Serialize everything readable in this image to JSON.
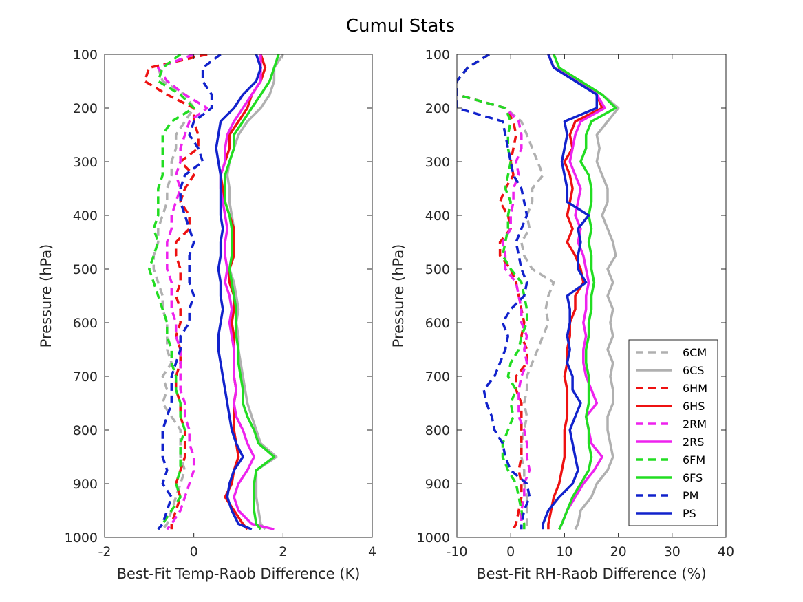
{
  "figure_title": "Cumul Stats",
  "chart_data": [
    {
      "type": "line",
      "xlabel": "Best-Fit Temp-Raob Difference (K)",
      "ylabel": "Pressure (hPa)",
      "xlim": [
        -2,
        4
      ],
      "ylim": [
        100,
        1000
      ],
      "y_reversed": true,
      "x_ticks": [
        "-2",
        "0",
        "2",
        "4"
      ],
      "y_ticks": [
        "100",
        "200",
        "300",
        "400",
        "500",
        "600",
        "700",
        "800",
        "900",
        "1000"
      ],
      "grid": false,
      "y": [
        100,
        125,
        150,
        175,
        200,
        225,
        250,
        275,
        300,
        325,
        350,
        375,
        400,
        425,
        450,
        475,
        500,
        525,
        550,
        575,
        600,
        625,
        650,
        675,
        700,
        725,
        750,
        775,
        800,
        825,
        850,
        875,
        900,
        925,
        950,
        975,
        985
      ],
      "series": [
        {
          "name": "6CM",
          "color": "#b0b0b0",
          "dash": true,
          "values": [
            0.0,
            -0.8,
            -0.7,
            -0.2,
            0.0,
            -0.2,
            -0.4,
            -0.4,
            -0.5,
            -0.5,
            -0.6,
            -0.6,
            -0.7,
            -0.8,
            -0.8,
            -0.9,
            -0.9,
            -0.8,
            -0.7,
            -0.7,
            -0.6,
            -0.6,
            -0.6,
            -0.5,
            -0.7,
            -0.6,
            -0.7,
            -0.5,
            -0.3,
            -0.3,
            -0.3,
            -0.2,
            -0.3,
            -0.4,
            -0.5,
            -0.6,
            -0.7
          ]
        },
        {
          "name": "6CS",
          "color": "#b0b0b0",
          "dash": false,
          "values": [
            2.0,
            1.8,
            1.8,
            1.7,
            1.5,
            1.2,
            1.0,
            0.9,
            0.8,
            0.75,
            0.8,
            0.8,
            0.85,
            0.9,
            0.9,
            0.85,
            0.8,
            0.9,
            0.95,
            1.0,
            0.95,
            1.0,
            1.0,
            1.05,
            1.1,
            1.15,
            1.2,
            1.3,
            1.4,
            1.5,
            1.85,
            1.4,
            1.4,
            1.4,
            1.45,
            1.5,
            1.6
          ]
        },
        {
          "name": "6HM",
          "color": "#ee1111",
          "dash": true,
          "values": [
            0.3,
            -1.0,
            -1.1,
            -0.6,
            0.0,
            0.0,
            0.1,
            0.1,
            -0.3,
            0.0,
            -0.2,
            -0.3,
            -0.1,
            -0.1,
            -0.4,
            -0.4,
            -0.3,
            -0.3,
            -0.4,
            -0.3,
            -0.3,
            -0.4,
            -0.3,
            -0.3,
            -0.4,
            -0.4,
            -0.3,
            -0.3,
            -0.2,
            -0.2,
            -0.2,
            -0.3,
            -0.4,
            -0.3,
            -0.4,
            -0.5,
            -0.5
          ]
        },
        {
          "name": "6HS",
          "color": "#ee1111",
          "dash": false,
          "values": [
            1.5,
            1.6,
            1.5,
            1.3,
            1.2,
            1.0,
            0.8,
            0.8,
            0.7,
            0.6,
            0.65,
            0.7,
            0.8,
            0.9,
            0.9,
            0.9,
            0.8,
            0.8,
            0.9,
            0.9,
            0.85,
            0.9,
            0.9,
            0.9,
            0.9,
            0.95,
            0.9,
            0.9,
            0.9,
            0.95,
            1.0,
            0.9,
            0.85,
            0.7,
            0.9,
            1.1,
            1.2
          ]
        },
        {
          "name": "2RM",
          "color": "#ee22ee",
          "dash": true,
          "values": [
            0.0,
            -0.8,
            -0.6,
            -0.2,
            0.3,
            -0.1,
            -0.2,
            -0.3,
            -0.3,
            -0.4,
            -0.3,
            -0.4,
            -0.5,
            -0.5,
            -0.6,
            -0.6,
            -0.6,
            -0.5,
            -0.5,
            -0.5,
            -0.4,
            -0.4,
            -0.3,
            -0.3,
            -0.3,
            -0.3,
            -0.2,
            -0.2,
            -0.1,
            -0.1,
            0.0,
            0.0,
            -0.1,
            -0.2,
            -0.3,
            -0.5,
            -0.6
          ]
        },
        {
          "name": "2RS",
          "color": "#ee22ee",
          "dash": false,
          "values": [
            1.5,
            1.5,
            1.5,
            1.3,
            1.1,
            0.9,
            0.75,
            0.7,
            0.7,
            0.6,
            0.6,
            0.65,
            0.7,
            0.75,
            0.7,
            0.7,
            0.75,
            0.7,
            0.8,
            0.85,
            0.8,
            0.85,
            0.9,
            0.9,
            0.9,
            0.95,
            0.9,
            0.95,
            1.1,
            1.2,
            1.35,
            1.2,
            1.0,
            0.9,
            1.0,
            1.3,
            1.8
          ]
        },
        {
          "name": "6FM",
          "color": "#22dd22",
          "dash": true,
          "values": [
            -0.3,
            -0.7,
            -0.8,
            -0.3,
            0.0,
            -0.5,
            -0.7,
            -0.7,
            -0.7,
            -0.7,
            -0.8,
            -0.8,
            -0.8,
            -0.9,
            -0.8,
            -0.9,
            -1.0,
            -0.9,
            -0.8,
            -0.7,
            -0.6,
            -0.6,
            -0.5,
            -0.5,
            -0.4,
            -0.4,
            -0.3,
            -0.3,
            -0.2,
            -0.3,
            -0.3,
            -0.3,
            -0.4,
            -0.3,
            -0.5,
            -0.7,
            -0.8
          ]
        },
        {
          "name": "6FS",
          "color": "#22dd22",
          "dash": false,
          "values": [
            1.9,
            1.8,
            1.7,
            1.5,
            1.3,
            1.1,
            0.9,
            0.9,
            0.8,
            0.7,
            0.7,
            0.7,
            0.8,
            0.85,
            0.85,
            0.85,
            0.8,
            0.85,
            0.9,
            0.95,
            0.95,
            0.95,
            1.0,
            1.0,
            1.05,
            1.1,
            1.1,
            1.2,
            1.35,
            1.45,
            1.8,
            1.4,
            1.35,
            1.35,
            1.35,
            1.4,
            1.5
          ]
        },
        {
          "name": "PM",
          "color": "#1122cc",
          "dash": true,
          "values": [
            0.6,
            0.2,
            0.2,
            0.4,
            0.4,
            0.0,
            -0.1,
            0.1,
            0.2,
            -0.2,
            -0.3,
            -0.3,
            -0.2,
            -0.1,
            0.0,
            -0.1,
            -0.1,
            -0.1,
            0.0,
            -0.1,
            -0.1,
            -0.3,
            -0.3,
            -0.4,
            -0.5,
            -0.5,
            -0.5,
            -0.6,
            -0.7,
            -0.7,
            -0.7,
            -0.6,
            -0.7,
            -0.5,
            -0.6,
            -0.7,
            -0.8
          ]
        },
        {
          "name": "PS",
          "color": "#1122cc",
          "dash": false,
          "values": [
            1.4,
            1.5,
            1.4,
            1.1,
            0.9,
            0.6,
            0.55,
            0.5,
            0.55,
            0.6,
            0.6,
            0.6,
            0.6,
            0.65,
            0.6,
            0.6,
            0.55,
            0.6,
            0.6,
            0.65,
            0.6,
            0.55,
            0.55,
            0.6,
            0.65,
            0.7,
            0.75,
            0.8,
            0.85,
            0.95,
            1.1,
            0.9,
            0.8,
            0.75,
            0.85,
            1.0,
            1.3
          ]
        }
      ]
    },
    {
      "type": "line",
      "xlabel": "Best-Fit RH-Raob Difference (%)",
      "ylabel": "Pressure (hPa)",
      "xlim": [
        -10,
        40
      ],
      "ylim": [
        100,
        1000
      ],
      "y_reversed": true,
      "x_ticks": [
        "-10",
        "0",
        "10",
        "20",
        "30",
        "40"
      ],
      "y_ticks": [
        "100",
        "200",
        "300",
        "400",
        "500",
        "600",
        "700",
        "800",
        "900",
        "1000"
      ],
      "grid": false,
      "legend_position": "bottom-right",
      "y": [
        100,
        125,
        150,
        175,
        200,
        225,
        250,
        275,
        300,
        325,
        350,
        375,
        400,
        425,
        450,
        475,
        500,
        525,
        550,
        575,
        600,
        625,
        650,
        675,
        700,
        725,
        750,
        775,
        800,
        825,
        850,
        875,
        900,
        925,
        950,
        975,
        985
      ],
      "series": [
        {
          "name": "6CM",
          "color": "#b0b0b0",
          "dash": true,
          "values": [
            -4.0,
            -8.0,
            -10.0,
            -10.0,
            -1.0,
            2.0,
            3.0,
            4.0,
            5.0,
            6.0,
            4.0,
            4.0,
            3.0,
            3.5,
            2.0,
            2.5,
            4.0,
            8.0,
            7.0,
            6.5,
            7.0,
            6.0,
            5.0,
            4.0,
            3.0,
            3.0,
            2.5,
            3.0,
            2.5,
            2.0,
            2.0,
            2.5,
            2.5,
            3.0,
            3.0,
            3.0,
            3.0
          ]
        },
        {
          "name": "6CS",
          "color": "#b0b0b0",
          "dash": false,
          "values": [
            8.0,
            9.0,
            12.0,
            17.0,
            20.0,
            18.0,
            16.0,
            16.5,
            16.0,
            17.0,
            18.0,
            18.0,
            17.0,
            18.0,
            19.0,
            19.5,
            18.0,
            19.0,
            18.0,
            19.0,
            18.5,
            19.0,
            18.0,
            19.0,
            18.5,
            19.0,
            19.0,
            18.0,
            18.0,
            18.5,
            19.0,
            18.0,
            16.0,
            15.0,
            13.0,
            12.5,
            12.0
          ]
        },
        {
          "name": "6HM",
          "color": "#ee1111",
          "dash": true,
          "values": [
            -4.0,
            -8.0,
            -10.0,
            -10.0,
            -1.0,
            0.5,
            1.0,
            0.5,
            0.0,
            0.5,
            -1.0,
            -2.0,
            -0.5,
            0.0,
            -2.0,
            -2.0,
            0.0,
            1.0,
            1.5,
            2.0,
            2.5,
            2.0,
            3.0,
            3.0,
            1.0,
            1.0,
            2.0,
            2.0,
            2.0,
            2.0,
            2.0,
            1.5,
            2.0,
            2.0,
            1.5,
            1.0,
            0.5
          ]
        },
        {
          "name": "6HS",
          "color": "#ee1111",
          "dash": false,
          "values": [
            7.0,
            8.0,
            13.0,
            16.0,
            17.0,
            12.0,
            11.0,
            11.5,
            10.0,
            11.0,
            11.5,
            11.0,
            10.5,
            11.5,
            10.5,
            12.0,
            13.0,
            13.5,
            12.0,
            12.0,
            11.0,
            11.0,
            10.5,
            10.5,
            10.0,
            10.5,
            10.5,
            10.5,
            10.0,
            10.0,
            10.0,
            9.5,
            9.0,
            8.0,
            7.5,
            7.0,
            7.0
          ]
        },
        {
          "name": "2RM",
          "color": "#ee22ee",
          "dash": true,
          "values": [
            -4.0,
            -8.0,
            -10.0,
            -10.0,
            -1.0,
            1.5,
            2.0,
            2.0,
            1.0,
            1.5,
            0.5,
            0.5,
            0.0,
            0.0,
            -1.5,
            -1.0,
            -1.0,
            1.0,
            1.5,
            2.0,
            2.0,
            3.0,
            2.5,
            3.0,
            2.0,
            1.5,
            1.5,
            1.5,
            2.5,
            3.0,
            3.0,
            3.5,
            2.5,
            2.5,
            2.0,
            2.0,
            2.0
          ]
        },
        {
          "name": "2RS",
          "color": "#ee22ee",
          "dash": false,
          "values": [
            7.0,
            8.0,
            13.0,
            16.0,
            17.5,
            13.0,
            12.0,
            11.5,
            11.0,
            12.0,
            13.0,
            12.5,
            12.0,
            13.0,
            12.5,
            13.5,
            14.0,
            14.5,
            14.0,
            14.0,
            13.5,
            14.0,
            13.5,
            13.5,
            14.0,
            15.0,
            16.0,
            14.0,
            14.5,
            15.0,
            17.0,
            15.5,
            13.5,
            12.0,
            10.5,
            9.5,
            9.0
          ]
        },
        {
          "name": "6FM",
          "color": "#22dd22",
          "dash": true,
          "values": [
            -4.0,
            -8.0,
            -10.0,
            -10.0,
            -1.0,
            0.0,
            -0.5,
            -0.5,
            0.0,
            -0.5,
            -1.0,
            0.0,
            -0.5,
            -0.5,
            -1.0,
            -1.5,
            0.0,
            2.0,
            2.5,
            3.0,
            3.0,
            2.0,
            1.5,
            0.0,
            -0.5,
            1.0,
            0.0,
            0.5,
            -0.5,
            -1.5,
            -1.5,
            -0.5,
            1.0,
            1.5,
            2.0,
            2.5,
            2.5
          ]
        },
        {
          "name": "6FS",
          "color": "#22dd22",
          "dash": false,
          "values": [
            8.0,
            9.0,
            13.0,
            17.0,
            19.5,
            15.0,
            14.0,
            14.0,
            13.0,
            14.5,
            15.0,
            15.0,
            14.5,
            15.0,
            14.5,
            15.0,
            15.0,
            15.5,
            15.0,
            15.0,
            14.5,
            14.5,
            14.0,
            14.0,
            14.5,
            14.5,
            14.5,
            14.0,
            14.5,
            14.5,
            15.0,
            14.5,
            13.0,
            11.5,
            10.5,
            9.5,
            9.0
          ]
        },
        {
          "name": "PM",
          "color": "#1122cc",
          "dash": true,
          "values": [
            -4.0,
            -8.0,
            -10.0,
            -10.0,
            -10.0,
            -1.5,
            -1.0,
            -0.5,
            0.0,
            0.5,
            2.0,
            2.5,
            3.0,
            2.0,
            1.0,
            1.5,
            2.0,
            3.0,
            2.5,
            0.0,
            -1.5,
            -0.5,
            -1.0,
            -2.0,
            -3.0,
            -5.0,
            -4.5,
            -3.5,
            -3.0,
            -1.5,
            -1.0,
            0.0,
            3.0,
            3.5,
            2.5,
            2.0,
            2.0
          ]
        },
        {
          "name": "PS",
          "color": "#1122cc",
          "dash": false,
          "values": [
            7.0,
            8.0,
            12.0,
            16.0,
            16.0,
            10.0,
            10.5,
            10.0,
            9.5,
            10.0,
            10.5,
            10.5,
            14.5,
            12.5,
            13.0,
            12.5,
            12.5,
            14.0,
            10.5,
            11.0,
            11.0,
            10.5,
            11.0,
            10.5,
            11.5,
            11.5,
            13.0,
            12.0,
            11.0,
            11.5,
            12.0,
            12.5,
            11.5,
            9.0,
            7.0,
            6.0,
            6.0
          ]
        }
      ]
    }
  ]
}
